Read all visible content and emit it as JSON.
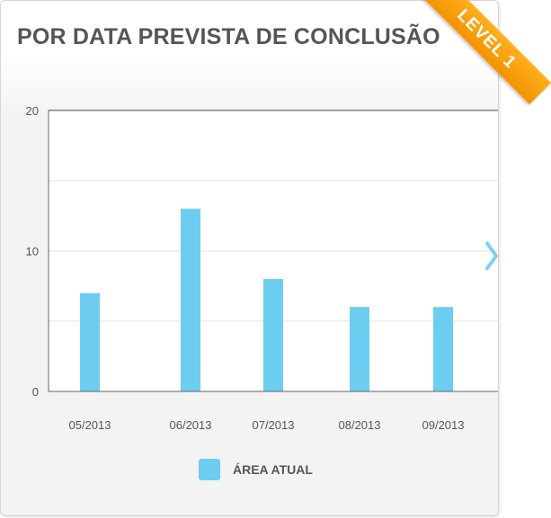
{
  "header": {
    "title": "POR DATA PREVISTA DE CONCLUSÃO"
  },
  "badge": {
    "label": "LEVEL 1"
  },
  "chart_data": {
    "type": "bar",
    "categories": [
      "05/2013",
      "06/2013",
      "07/2013",
      "08/2013",
      "09/2013"
    ],
    "series": [
      {
        "name": "ÁREA ATUAL",
        "values": [
          7,
          13,
          8,
          6,
          6
        ],
        "color": "#6ccdf1"
      }
    ],
    "ylim": [
      0,
      20
    ],
    "yticks": [
      0,
      10,
      20
    ],
    "grid": true,
    "legend_position": "bottom"
  },
  "colors": {
    "bar": "#6ccdf1",
    "accent": "#f39200",
    "arrow": "#7fd0f0"
  },
  "icons": {
    "next": "chevron-right-icon"
  }
}
